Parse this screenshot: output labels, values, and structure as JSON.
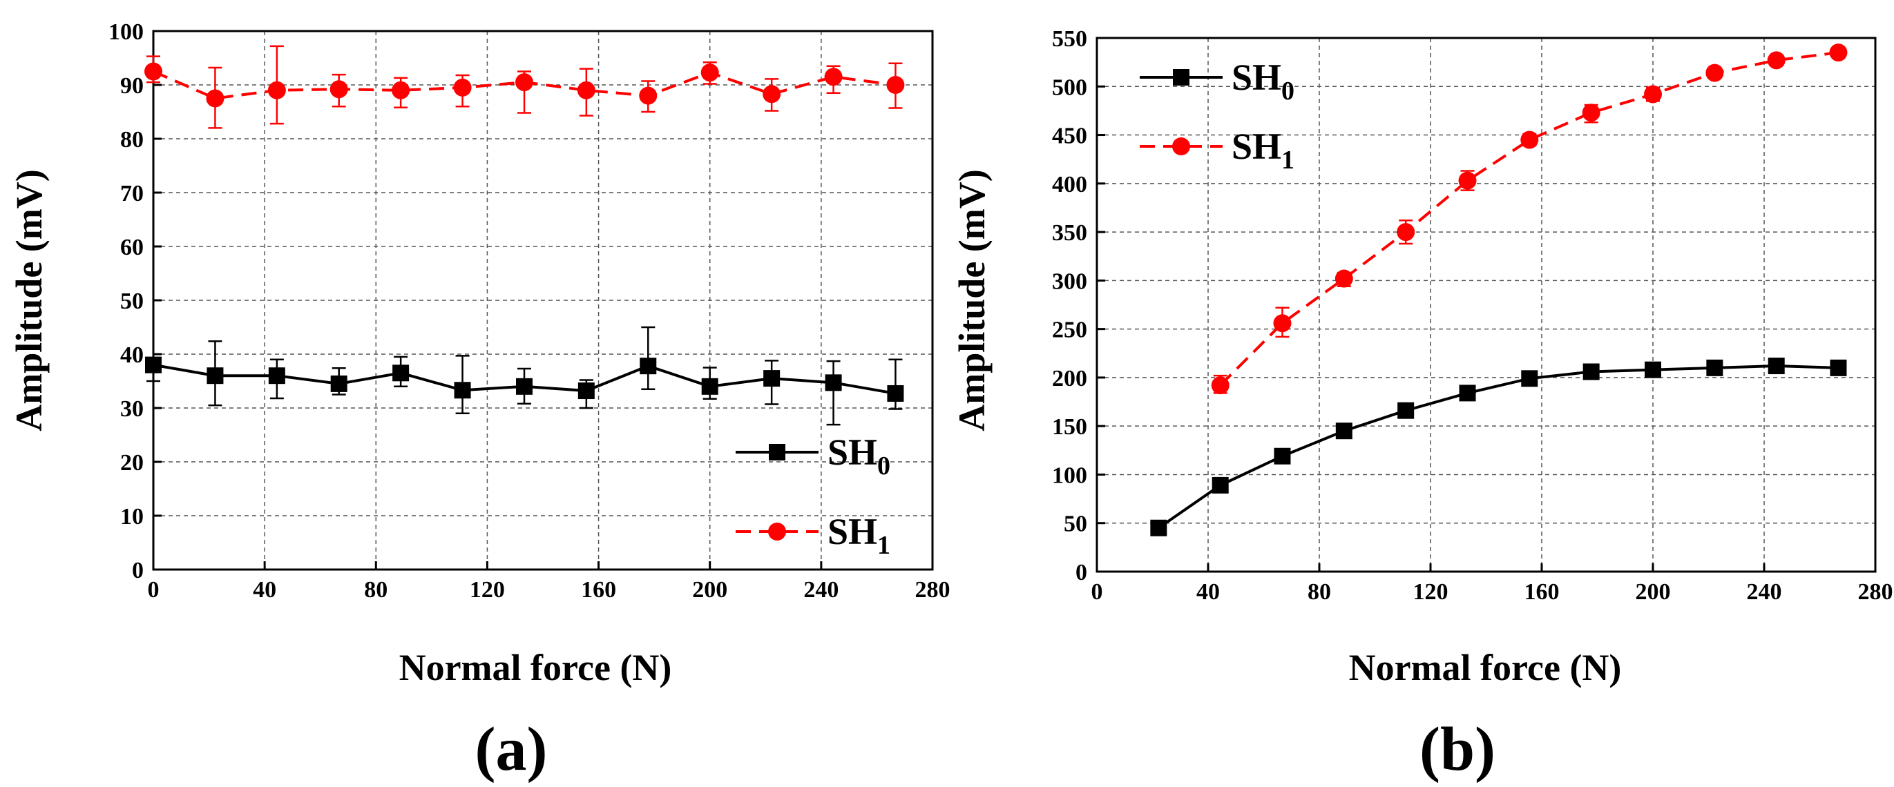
{
  "chart_data": [
    {
      "type": "line",
      "panel_label": "(a)",
      "xlabel_main": "Normal force",
      "xlabel_unit": "(N)",
      "ylabel": "Amplitude (mV)",
      "xlim": [
        0,
        280
      ],
      "ylim": [
        0,
        100
      ],
      "xticks": [
        0,
        40,
        80,
        120,
        160,
        200,
        240,
        280
      ],
      "yticks": [
        0,
        10,
        20,
        30,
        40,
        50,
        60,
        70,
        80,
        90,
        100
      ],
      "grid": true,
      "legend_position": "bottom-right",
      "series": [
        {
          "name": "SH",
          "name_sub": "0",
          "color": "#000000",
          "marker": "square",
          "dash": false,
          "x": [
            0,
            22.2,
            44.4,
            66.7,
            88.9,
            111.1,
            133.3,
            155.6,
            177.8,
            200,
            222.2,
            244.4,
            266.7
          ],
          "y": [
            38,
            36,
            36,
            34.5,
            36.5,
            33.3,
            34,
            33.2,
            37.8,
            34,
            35.5,
            34.7,
            32.7
          ],
          "err_low": [
            3,
            5.5,
            4.2,
            2,
            2.5,
            4.3,
            3.2,
            3.2,
            4.3,
            2.3,
            4.8,
            7.8,
            2.9
          ],
          "err_high": [
            0,
            6.4,
            3,
            2.9,
            3,
            6.4,
            3.3,
            2,
            7.2,
            3.5,
            3.3,
            4,
            6.3
          ]
        },
        {
          "name": "SH",
          "name_sub": "1",
          "color": "#ff0000",
          "marker": "circle",
          "dash": true,
          "x": [
            0,
            22.2,
            44.4,
            66.7,
            88.9,
            111.1,
            133.3,
            155.6,
            177.8,
            200,
            222.2,
            244.4,
            266.7
          ],
          "y": [
            92.5,
            87.5,
            89,
            89.2,
            89,
            89.5,
            90.5,
            89,
            88,
            92.3,
            88.3,
            91.5,
            90
          ],
          "err_low": [
            2,
            5.5,
            6.2,
            3.2,
            3.2,
            3.5,
            5.7,
            4.7,
            3,
            2.1,
            3.1,
            3,
            4.3
          ],
          "err_high": [
            2.8,
            5.7,
            8.2,
            2.7,
            2.3,
            2.3,
            2,
            4,
            2.7,
            1.9,
            2.8,
            2,
            4
          ]
        }
      ]
    },
    {
      "type": "line",
      "panel_label": "(b)",
      "xlabel_main": "Normal force",
      "xlabel_unit": "(N)",
      "ylabel": "Amplitude (mV)",
      "xlim": [
        0,
        280
      ],
      "ylim": [
        0,
        550
      ],
      "xticks": [
        0,
        40,
        80,
        120,
        160,
        200,
        240,
        280
      ],
      "yticks": [
        0,
        50,
        100,
        150,
        200,
        250,
        300,
        350,
        400,
        450,
        500,
        550
      ],
      "grid": true,
      "legend_position": "top-left",
      "series": [
        {
          "name": "SH",
          "name_sub": "0",
          "color": "#000000",
          "marker": "square",
          "dash": false,
          "x": [
            22.2,
            44.4,
            66.7,
            88.9,
            111.1,
            133.3,
            155.6,
            177.8,
            200,
            222.2,
            244.4,
            266.7
          ],
          "y": [
            45,
            89,
            119,
            145,
            166,
            184,
            199,
            206,
            208,
            210,
            212,
            210
          ],
          "err_low": [
            0,
            0,
            0,
            0,
            0,
            0,
            0,
            0,
            0,
            0,
            0,
            0
          ],
          "err_high": [
            0,
            0,
            0,
            0,
            0,
            0,
            0,
            0,
            0,
            0,
            0,
            0
          ]
        },
        {
          "name": "SH",
          "name_sub": "1",
          "color": "#ff0000",
          "marker": "circle",
          "dash": true,
          "x": [
            44.4,
            66.7,
            88.9,
            111.1,
            133.3,
            155.6,
            177.8,
            200,
            222.2,
            244.4,
            266.7
          ],
          "y": [
            192,
            256,
            302,
            350,
            403,
            445,
            473,
            492,
            514,
            527,
            535
          ],
          "err_low": [
            8,
            14,
            8,
            12,
            10,
            6,
            10,
            7,
            5,
            5,
            4
          ],
          "err_high": [
            10,
            16,
            6,
            12,
            10,
            6,
            8,
            7,
            5,
            5,
            4
          ]
        }
      ]
    }
  ]
}
